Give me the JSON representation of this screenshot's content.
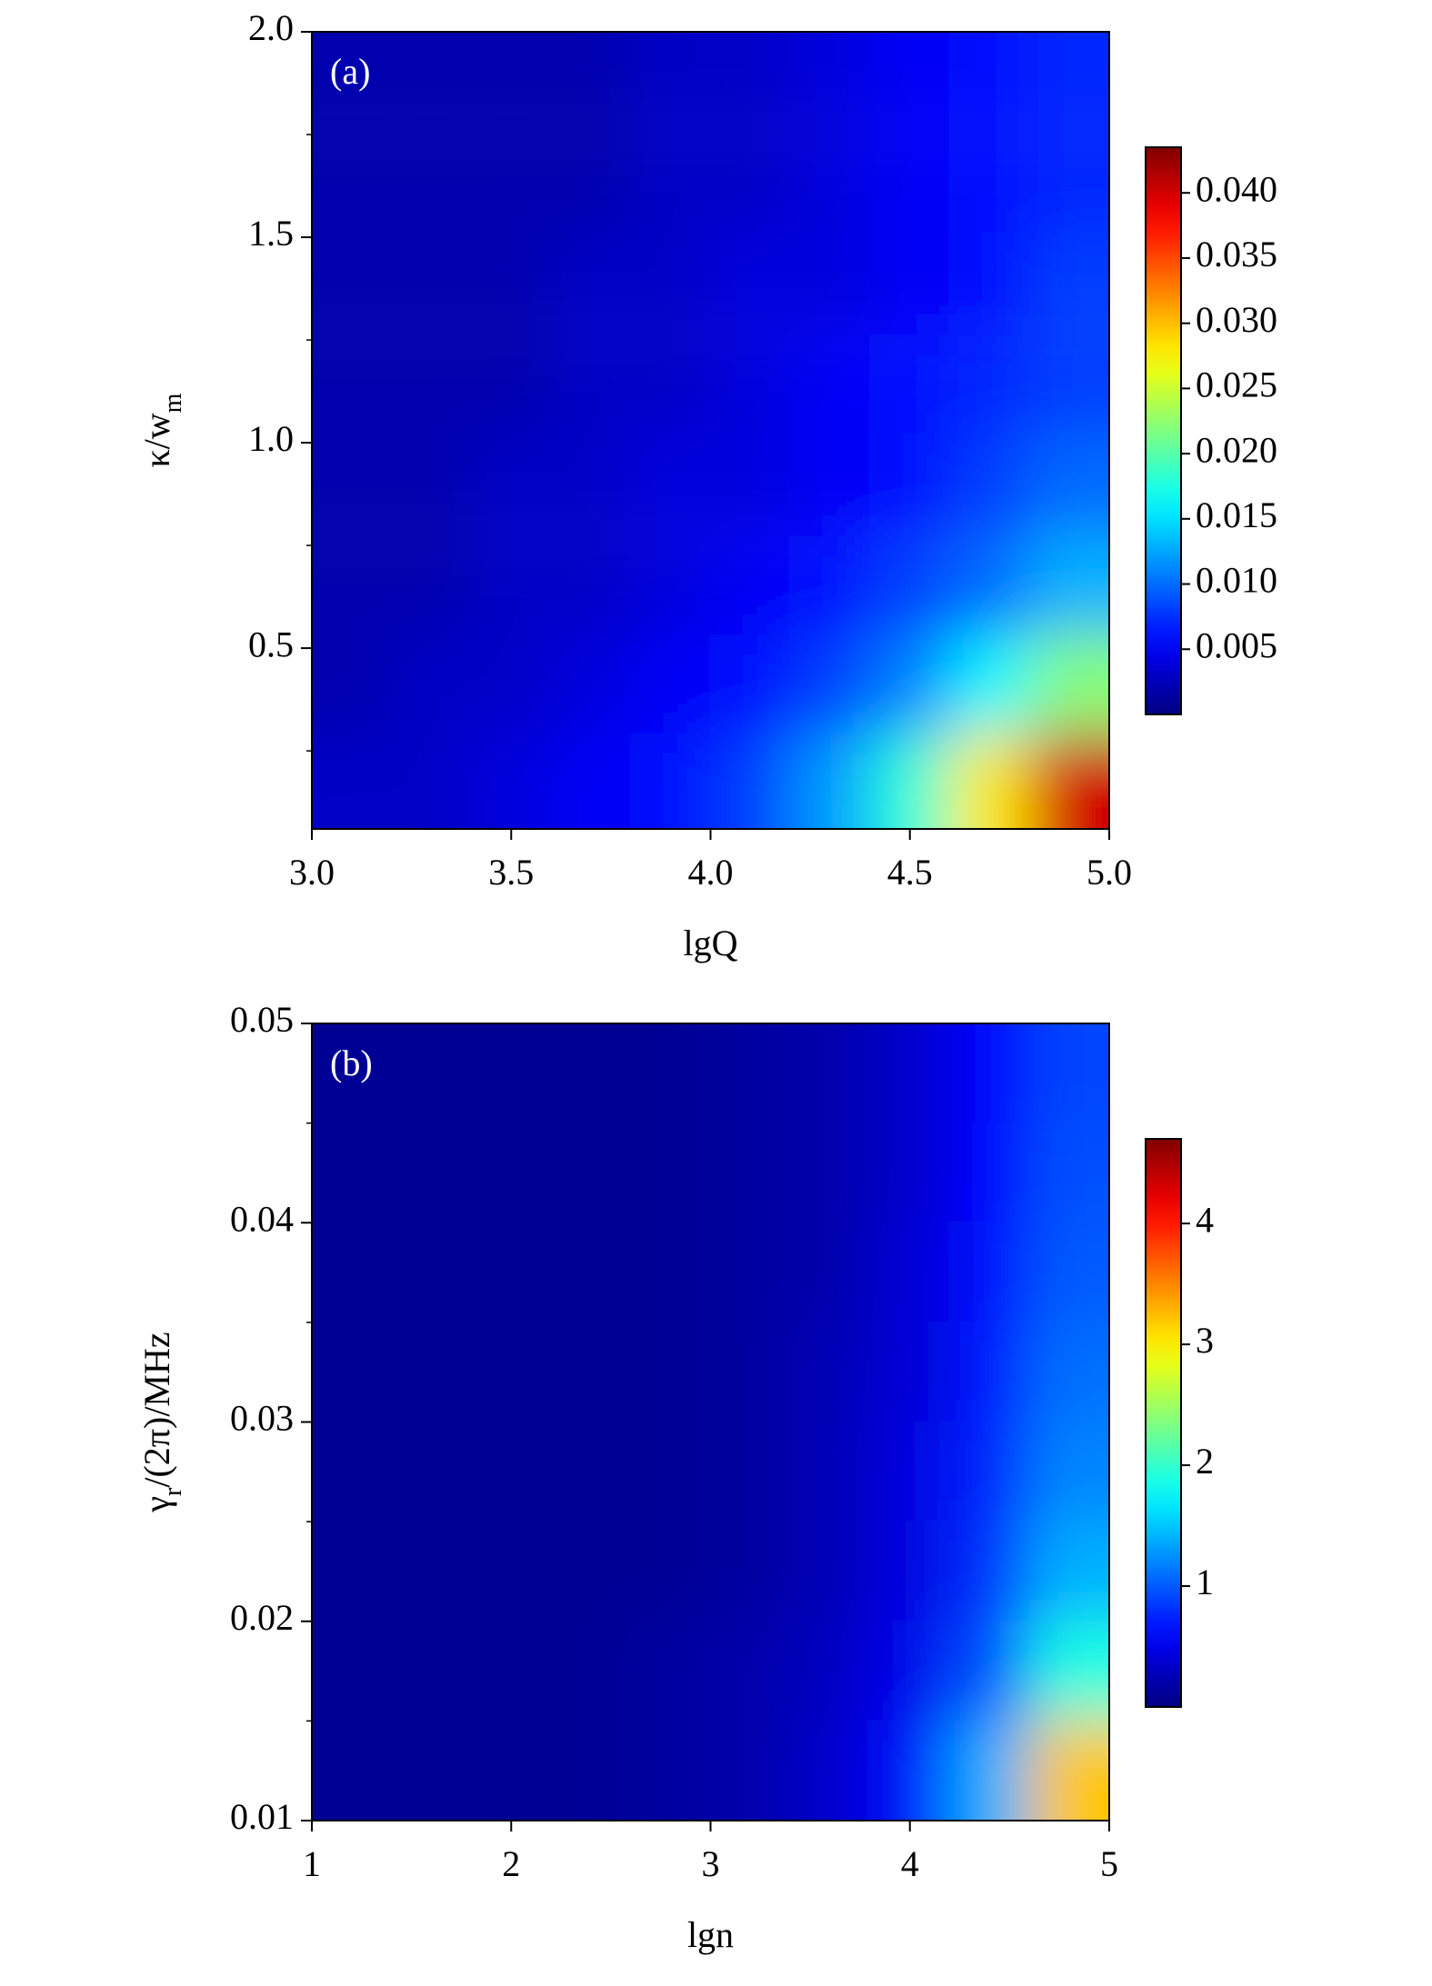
{
  "chart_data": [
    {
      "type": "heatmap",
      "panel_label": "(a)",
      "colormap": "jet",
      "xlabel": "lgQ",
      "ylabel": [
        {
          "text": "κ/w"
        },
        {
          "text": "m",
          "sub": true
        }
      ],
      "xlim": [
        3.0,
        5.0
      ],
      "ylim": [
        0.06,
        2.0
      ],
      "xticks": [
        {
          "value": 3,
          "label": "3.0"
        },
        3.5,
        {
          "value": 4,
          "label": "4.0"
        },
        4.5,
        {
          "value": 5,
          "label": "5.0"
        }
      ],
      "yticks": [
        0.5,
        {
          "value": 1,
          "label": "1.0"
        },
        1.5,
        {
          "value": 2,
          "label": "2.0"
        }
      ],
      "yminorticks": [
        0.25,
        0.75,
        1.25,
        1.75
      ],
      "x": [
        3.1,
        3.3,
        3.5,
        3.7,
        3.9,
        4.1,
        4.3,
        4.5,
        4.7,
        4.9
      ],
      "y": [
        1.88,
        1.63,
        1.39,
        1.14,
        0.9,
        0.65,
        0.41,
        0.17
      ],
      "z": [
        [
          0.002,
          0.002,
          0.002,
          0.002,
          0.003,
          0.003,
          0.004,
          0.005,
          0.006,
          0.007
        ],
        [
          0.002,
          0.002,
          0.002,
          0.002,
          0.003,
          0.003,
          0.004,
          0.005,
          0.006,
          0.007
        ],
        [
          0.002,
          0.002,
          0.002,
          0.003,
          0.003,
          0.004,
          0.004,
          0.005,
          0.006,
          0.008
        ],
        [
          0.002,
          0.002,
          0.002,
          0.003,
          0.003,
          0.004,
          0.005,
          0.006,
          0.007,
          0.008
        ],
        [
          0.002,
          0.002,
          0.003,
          0.003,
          0.004,
          0.004,
          0.005,
          0.006,
          0.008,
          0.01
        ],
        [
          0.002,
          0.002,
          0.003,
          0.003,
          0.004,
          0.005,
          0.006,
          0.008,
          0.01,
          0.013
        ],
        [
          0.002,
          0.003,
          0.003,
          0.004,
          0.005,
          0.006,
          0.008,
          0.011,
          0.016,
          0.022
        ],
        [
          0.003,
          0.003,
          0.004,
          0.005,
          0.006,
          0.008,
          0.012,
          0.018,
          0.028,
          0.04
        ]
      ],
      "clim": [
        0,
        0.0435
      ],
      "cticks": [
        0.005,
        {
          "value": 0.01,
          "label": "0.010"
        },
        0.015,
        {
          "value": 0.02,
          "label": "0.020"
        },
        0.025,
        {
          "value": 0.03,
          "label": "0.030"
        },
        0.035,
        {
          "value": 0.04,
          "label": "0.040"
        }
      ]
    },
    {
      "type": "heatmap",
      "panel_label": "(b)",
      "colormap": "jet",
      "xlabel": "lgn",
      "ylabel": [
        {
          "text": "γ"
        },
        {
          "text": "r",
          "sub": true
        },
        {
          "text": "/(2π)/MHz"
        }
      ],
      "xlim": [
        1,
        5
      ],
      "ylim": [
        0.01,
        0.05
      ],
      "xticks": [
        1,
        2,
        3,
        4,
        5
      ],
      "yticks": [
        {
          "value": 0.01,
          "label": "0.01"
        },
        {
          "value": 0.02,
          "label": "0.02"
        },
        {
          "value": 0.03,
          "label": "0.03"
        },
        {
          "value": 0.04,
          "label": "0.04"
        },
        {
          "value": 0.05,
          "label": "0.05"
        }
      ],
      "yminorticks": [
        0.015,
        0.025,
        0.035,
        0.045
      ],
      "x": [
        1.2,
        1.6,
        2.0,
        2.4,
        2.8,
        3.2,
        3.6,
        4.0,
        4.4,
        4.8
      ],
      "y": [
        0.0475,
        0.0425,
        0.0375,
        0.0325,
        0.0275,
        0.0225,
        0.0175,
        0.0125
      ],
      "z": [
        [
          0.1,
          0.1,
          0.1,
          0.1,
          0.1,
          0.15,
          0.2,
          0.35,
          0.6,
          0.9
        ],
        [
          0.1,
          0.1,
          0.1,
          0.1,
          0.1,
          0.15,
          0.2,
          0.35,
          0.6,
          0.95
        ],
        [
          0.1,
          0.1,
          0.1,
          0.1,
          0.1,
          0.15,
          0.2,
          0.4,
          0.65,
          1.0
        ],
        [
          0.1,
          0.1,
          0.1,
          0.1,
          0.1,
          0.15,
          0.25,
          0.4,
          0.7,
          1.1
        ],
        [
          0.1,
          0.1,
          0.1,
          0.1,
          0.1,
          0.15,
          0.25,
          0.45,
          0.75,
          1.2
        ],
        [
          0.1,
          0.1,
          0.1,
          0.1,
          0.1,
          0.15,
          0.25,
          0.45,
          0.8,
          1.4
        ],
        [
          0.1,
          0.1,
          0.1,
          0.1,
          0.15,
          0.2,
          0.3,
          0.5,
          0.95,
          1.9
        ],
        [
          0.1,
          0.1,
          0.1,
          0.1,
          0.15,
          0.2,
          0.35,
          0.65,
          1.4,
          3.2
        ]
      ],
      "clim": [
        0,
        4.7
      ],
      "cticks": [
        1,
        2,
        3,
        4
      ]
    }
  ]
}
